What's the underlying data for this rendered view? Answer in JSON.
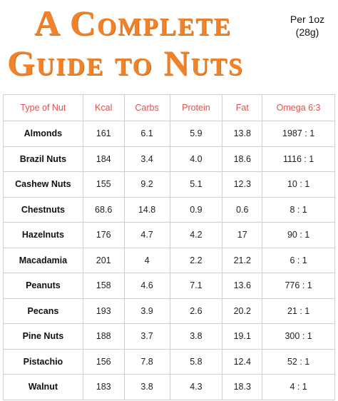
{
  "title": {
    "line1": "A Complete",
    "line2": "Guide to Nuts"
  },
  "serving": {
    "line1": "Per 1oz",
    "line2": "(28g)"
  },
  "table": {
    "headers": [
      "Type of Nut",
      "Kcal",
      "Carbs",
      "Protein",
      "Fat",
      "Omega 6:3"
    ],
    "rows": [
      [
        "Almonds",
        "161",
        "6.1",
        "5.9",
        "13.8",
        "1987 : 1"
      ],
      [
        "Brazil Nuts",
        "184",
        "3.4",
        "4.0",
        "18.6",
        "1116 : 1"
      ],
      [
        "Cashew Nuts",
        "155",
        "9.2",
        "5.1",
        "12.3",
        "10 : 1"
      ],
      [
        "Chestnuts",
        "68.6",
        "14.8",
        "0.9",
        "0.6",
        "8 : 1"
      ],
      [
        "Hazelnuts",
        "176",
        "4.7",
        "4.2",
        "17",
        "90 : 1"
      ],
      [
        "Macadamia",
        "201",
        "4",
        "2.2",
        "21.2",
        "6 : 1"
      ],
      [
        "Peanuts",
        "158",
        "4.6",
        "7.1",
        "13.6",
        "776 : 1"
      ],
      [
        "Pecans",
        "193",
        "3.9",
        "2.6",
        "20.2",
        "21 : 1"
      ],
      [
        "Pine Nuts",
        "188",
        "3.7",
        "3.8",
        "19.1",
        "300 : 1"
      ],
      [
        "Pistachio",
        "156",
        "7.8",
        "5.8",
        "12.4",
        "52 : 1"
      ],
      [
        "Walnut",
        "183",
        "3.8",
        "4.3",
        "18.3",
        "4 : 1"
      ]
    ]
  },
  "colors": {
    "title": "#f0822a",
    "header_text": "#d9534f",
    "grid": "#cfcfcf"
  }
}
